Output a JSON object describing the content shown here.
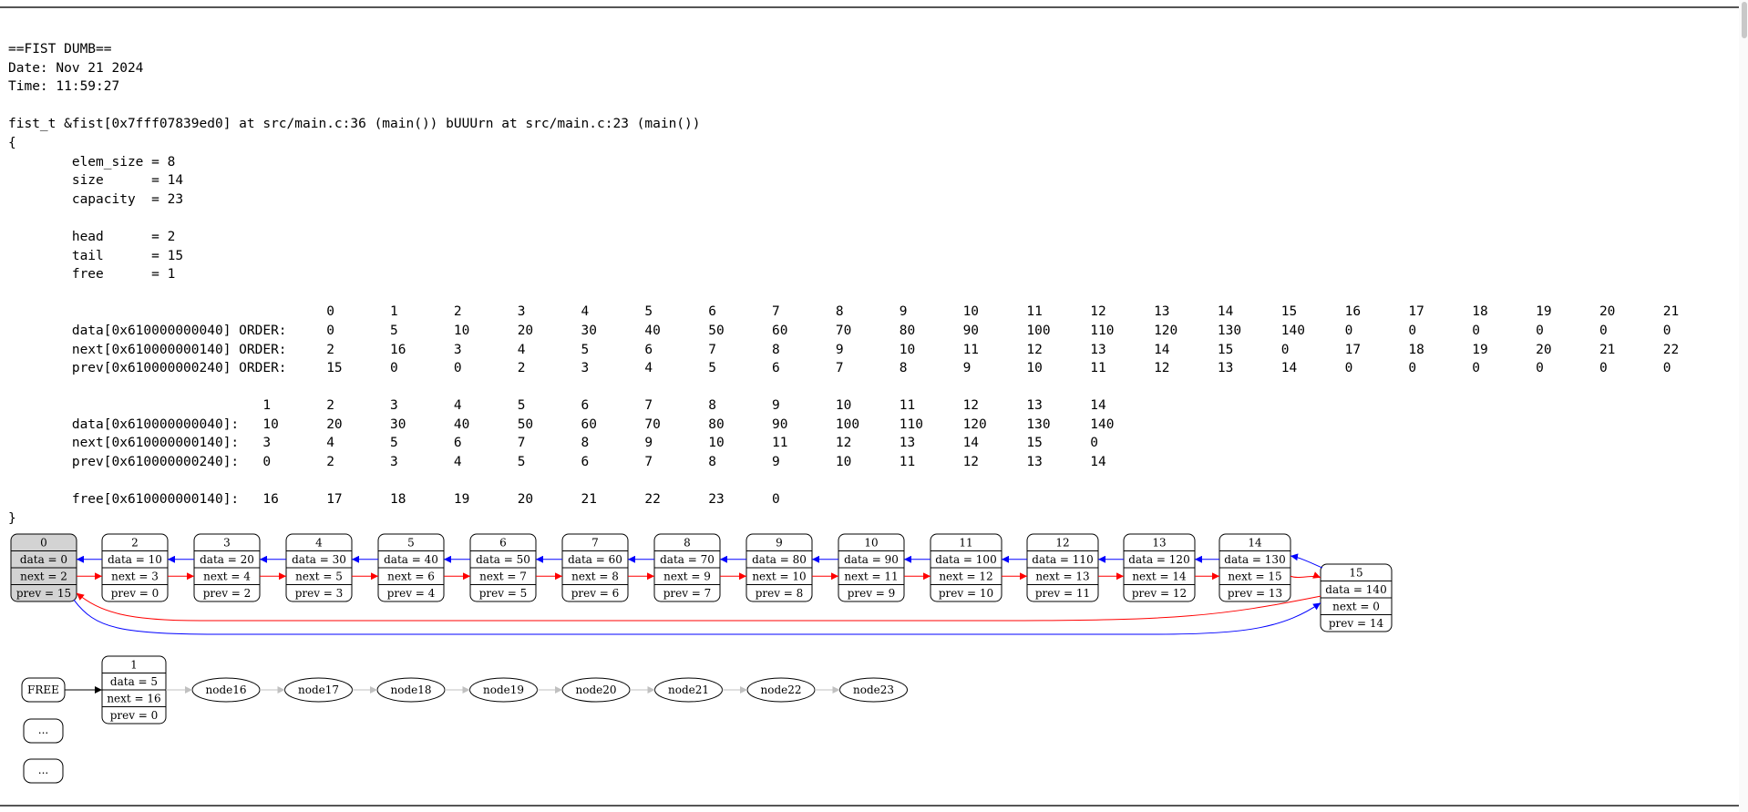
{
  "dump_lines": [
    "==FIST DUMB==",
    "Date: Nov 21 2024",
    "Time: 11:59:27",
    "",
    "fist_t &fist[0x7fff07839ed0] at src/main.c:36 (main()) bUUUrn at src/main.c:23 (main())",
    "{",
    "        elem_size = 8",
    "        size      = 14",
    "        capacity  = 23",
    "",
    "        head      = 2",
    "        tail      = 15",
    "        free      = 1",
    "",
    "                                        0       1       2       3       4       5       6       7       8       9       10      11      12      13      14      15      16      17      18      19      20      21",
    "        data[0x610000000040] ORDER:     0       5       10      20      30      40      50      60      70      80      90      100     110     120     130     140     0       0       0       0       0       0",
    "        next[0x610000000140] ORDER:     2       16      3       4       5       6       7       8       9       10      11      12      13      14      15      0       17      18      19      20      21      22",
    "        prev[0x610000000240] ORDER:     15      0       0       2       3       4       5       6       7       8       9       10      11      12      13      14      0       0       0       0       0       0",
    "",
    "                                1       2       3       4       5       6       7       8       9       10      11      12      13      14",
    "        data[0x610000000040]:   10      20      30      40      50      60      70      80      90      100     110     120     130     140",
    "        next[0x610000000140]:   3       4       5       6       7       8       9       10      11      12      13      14      15      0",
    "        prev[0x610000000240]:   0       2       3       4       5       6       7       8       9       10      11      12      13      14",
    "",
    "        free[0x610000000140]:   16      17      18      19      20      21      22      23      0",
    "}"
  ],
  "list_nodes": [
    {
      "id": "0",
      "data": "data = 0",
      "next": "next = 2",
      "prev": "prev = 15",
      "fill": "#d3d3d3"
    },
    {
      "id": "2",
      "data": "data = 10",
      "next": "next = 3",
      "prev": "prev = 0"
    },
    {
      "id": "3",
      "data": "data = 20",
      "next": "next = 4",
      "prev": "prev = 2"
    },
    {
      "id": "4",
      "data": "data = 30",
      "next": "next = 5",
      "prev": "prev = 3"
    },
    {
      "id": "5",
      "data": "data = 40",
      "next": "next = 6",
      "prev": "prev = 4"
    },
    {
      "id": "6",
      "data": "data = 50",
      "next": "next = 7",
      "prev": "prev = 5"
    },
    {
      "id": "7",
      "data": "data = 60",
      "next": "next = 8",
      "prev": "prev = 6"
    },
    {
      "id": "8",
      "data": "data = 70",
      "next": "next = 9",
      "prev": "prev = 7"
    },
    {
      "id": "9",
      "data": "data = 80",
      "next": "next = 10",
      "prev": "prev = 8"
    },
    {
      "id": "10",
      "data": "data = 90",
      "next": "next = 11",
      "prev": "prev = 9"
    },
    {
      "id": "11",
      "data": "data = 100",
      "next": "next = 12",
      "prev": "prev = 10"
    },
    {
      "id": "12",
      "data": "data = 110",
      "next": "next = 13",
      "prev": "prev = 11"
    },
    {
      "id": "13",
      "data": "data = 120",
      "next": "next = 14",
      "prev": "prev = 12"
    },
    {
      "id": "14",
      "data": "data = 130",
      "next": "next = 15",
      "prev": "prev = 13"
    },
    {
      "id": "15",
      "data": "data = 140",
      "next": "next = 0",
      "prev": "prev = 14"
    }
  ],
  "free_label": "FREE",
  "free_node": {
    "id": "1",
    "data": "data = 5",
    "next": "next = 16",
    "prev": "prev = 0"
  },
  "free_chain": [
    "node16",
    "node17",
    "node18",
    "node19",
    "node20",
    "node21",
    "node22",
    "node23"
  ],
  "ellipsis_boxes": [
    "...",
    "..."
  ],
  "colors": {
    "next_edge": "#ff0000",
    "prev_edge": "#0000ff",
    "free_edge": "#000000",
    "chain_edge": "#c0c0c0",
    "head_fill": "#d3d3d3"
  }
}
